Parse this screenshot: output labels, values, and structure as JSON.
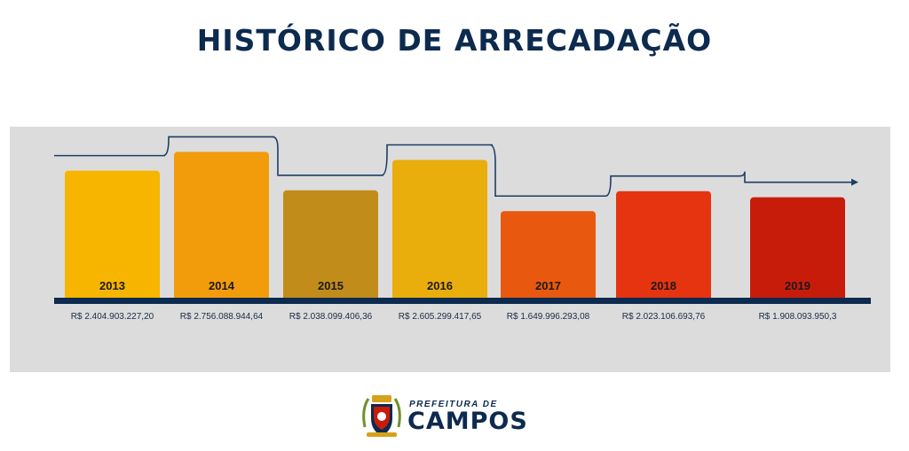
{
  "header": {
    "title": "HISTÓRICO DE ARRECADAÇÃO"
  },
  "chart_data": {
    "type": "bar",
    "title": "HISTÓRICO DE ARRECADAÇÃO",
    "categories": [
      "2013",
      "2014",
      "2015",
      "2016",
      "2017",
      "2018",
      "2019"
    ],
    "values": [
      2404903227.2,
      2756088944.64,
      2038099406.36,
      2605299417.65,
      1649996293.08,
      2023106693.76,
      1908093950.3
    ],
    "value_labels": [
      "R$ 2.404.903.227,20",
      "R$ 2.756.088.944,64",
      "R$ 2.038.099.406,36",
      "R$ 2.605.299.417,65",
      "R$ 1.649.996.293,08",
      "R$ 2.023.106.693,76",
      "R$ 1.908.093.950,3"
    ],
    "colors": [
      "#f7b500",
      "#f39c0b",
      "#c28c1a",
      "#e9ad0c",
      "#e8590f",
      "#e63411",
      "#c81c0b"
    ],
    "ylim": [
      0,
      3000000000
    ],
    "xlabel": "",
    "ylabel": "",
    "grid": false,
    "legend": "none",
    "trend_arrow": true
  },
  "footer": {
    "logo_top": "PREFEITURA DE",
    "logo_main": "CAMPOS"
  }
}
